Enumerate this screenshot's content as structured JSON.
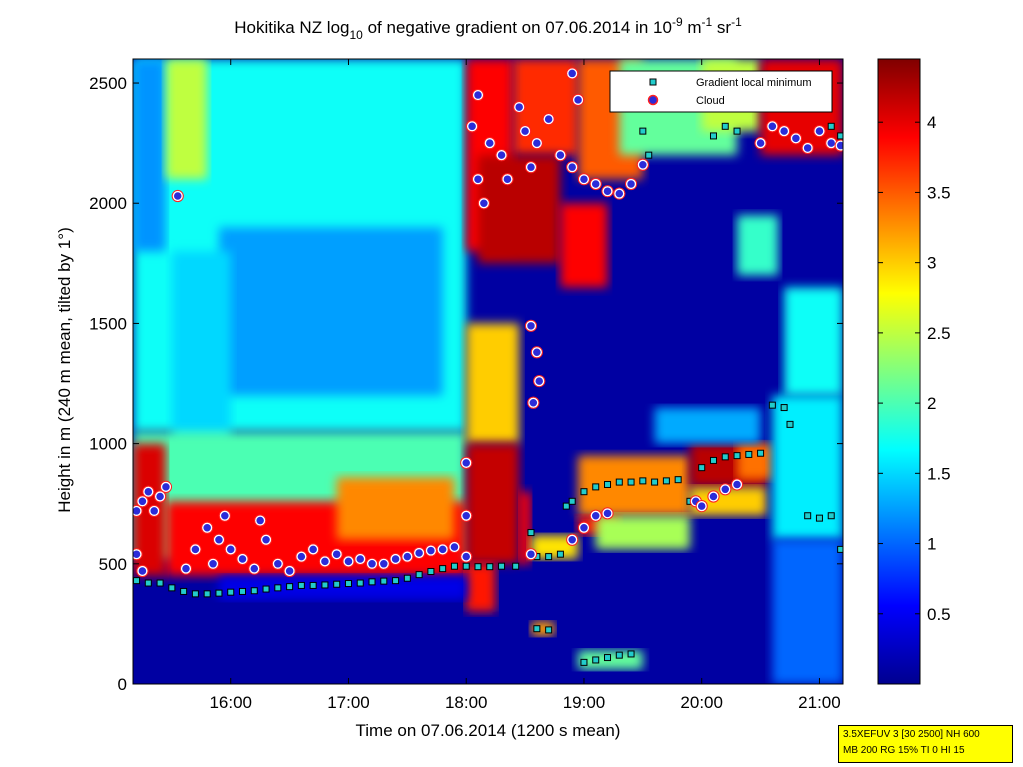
{
  "chart_data": {
    "type": "heatmap",
    "title_parts": {
      "lead": "Hokitika NZ log",
      "sub": "10",
      "mid": " of negative gradient on 07.06.2014 in 10",
      "sup1": "-9",
      "mid2": " m",
      "sup2": "-1",
      "mid3": " sr",
      "sup3": "-1"
    },
    "xlabel": "Time on 07.06.2014 (1200 s mean)",
    "ylabel": "Height in m (240 m mean, tilted by 1°)",
    "xlim": [
      15.17,
      21.2
    ],
    "ylim": [
      0,
      2600
    ],
    "x_ticks": [
      {
        "v": 16,
        "label": "16:00"
      },
      {
        "v": 17,
        "label": "17:00"
      },
      {
        "v": 18,
        "label": "18:00"
      },
      {
        "v": 19,
        "label": "19:00"
      },
      {
        "v": 20,
        "label": "20:00"
      },
      {
        "v": 21,
        "label": "21:00"
      }
    ],
    "y_ticks": [
      {
        "v": 0,
        "label": "0"
      },
      {
        "v": 500,
        "label": "500"
      },
      {
        "v": 1000,
        "label": "1000"
      },
      {
        "v": 1500,
        "label": "1500"
      },
      {
        "v": 2000,
        "label": "2000"
      },
      {
        "v": 2500,
        "label": "2500"
      }
    ],
    "colorbar": {
      "min": 0.0,
      "max": 4.45,
      "ticks": [
        {
          "v": 0.5,
          "label": "0.5"
        },
        {
          "v": 1,
          "label": "1"
        },
        {
          "v": 1.5,
          "label": "1.5"
        },
        {
          "v": 2,
          "label": "2"
        },
        {
          "v": 2.5,
          "label": "2.5"
        },
        {
          "v": 3,
          "label": "3"
        },
        {
          "v": 3.5,
          "label": "3.5"
        },
        {
          "v": 4,
          "label": "4"
        }
      ]
    },
    "legend": {
      "placement": "top-right",
      "entries": [
        {
          "name": "Gradient local minimum",
          "marker": "square",
          "color": "#22cccc"
        },
        {
          "name": "Cloud",
          "marker": "circle",
          "color": "#2b2bd9",
          "edge": "#ff2020"
        }
      ]
    },
    "regions": [
      {
        "x": [
          15.17,
          21.2
        ],
        "y": [
          0,
          2600
        ],
        "v": 0.15
      },
      {
        "x": [
          15.17,
          18.0
        ],
        "y": [
          1050,
          2600
        ],
        "v": 1.7
      },
      {
        "x": [
          15.17,
          15.45
        ],
        "y": [
          1800,
          2600
        ],
        "v": 1.2
      },
      {
        "x": [
          15.9,
          17.8
        ],
        "y": [
          1200,
          1900
        ],
        "v": 1.25
      },
      {
        "x": [
          15.45,
          15.8
        ],
        "y": [
          2100,
          2600
        ],
        "v": 2.5
      },
      {
        "x": [
          15.5,
          16.0
        ],
        "y": [
          1000,
          1800
        ],
        "v": 1.5
      },
      {
        "x": [
          15.17,
          18.0
        ],
        "y": [
          520,
          1050
        ],
        "v": 2.0
      },
      {
        "x": [
          15.17,
          15.45
        ],
        "y": [
          450,
          1000
        ],
        "v": 4.05
      },
      {
        "x": [
          15.45,
          18.0
        ],
        "y": [
          450,
          760
        ],
        "v": 3.9
      },
      {
        "x": [
          16.9,
          17.9
        ],
        "y": [
          600,
          860
        ],
        "v": 3.3
      },
      {
        "x": [
          18.0,
          18.4
        ],
        "y": [
          1800,
          2600
        ],
        "v": 3.9
      },
      {
        "x": [
          18.4,
          18.95
        ],
        "y": [
          2200,
          2600
        ],
        "v": 3.7
      },
      {
        "x": [
          18.95,
          19.5
        ],
        "y": [
          2100,
          2600
        ],
        "v": 3.5
      },
      {
        "x": [
          18.1,
          18.8
        ],
        "y": [
          1750,
          2200
        ],
        "v": 4.2
      },
      {
        "x": [
          18.8,
          19.2
        ],
        "y": [
          1650,
          2000
        ],
        "v": 3.9
      },
      {
        "x": [
          18.0,
          18.45
        ],
        "y": [
          1000,
          1500
        ],
        "v": 3.0
      },
      {
        "x": [
          18.0,
          18.45
        ],
        "y": [
          500,
          1000
        ],
        "v": 4.15
      },
      {
        "x": [
          18.0,
          18.25
        ],
        "y": [
          300,
          500
        ],
        "v": 3.8
      },
      {
        "x": [
          18.45,
          18.55
        ],
        "y": [
          500,
          800
        ],
        "v": 3.9
      },
      {
        "x": [
          18.55,
          18.95
        ],
        "y": [
          520,
          620
        ],
        "v": 2.9
      },
      {
        "x": [
          18.95,
          19.9
        ],
        "y": [
          700,
          950
        ],
        "v": 3.3
      },
      {
        "x": [
          18.95,
          19.3
        ],
        "y": [
          620,
          700
        ],
        "v": 3.8
      },
      {
        "x": [
          19.1,
          19.9
        ],
        "y": [
          560,
          700
        ],
        "v": 2.4
      },
      {
        "x": [
          19.9,
          20.55
        ],
        "y": [
          820,
          1000
        ],
        "v": 4.2
      },
      {
        "x": [
          19.9,
          20.55
        ],
        "y": [
          700,
          820
        ],
        "v": 3.0
      },
      {
        "x": [
          20.3,
          20.6
        ],
        "y": [
          850,
          1000
        ],
        "v": 3.4
      },
      {
        "x": [
          20.6,
          21.2
        ],
        "y": [
          600,
          1200
        ],
        "v": 1.6
      },
      {
        "x": [
          20.7,
          21.2
        ],
        "y": [
          1200,
          1650
        ],
        "v": 1.7
      },
      {
        "x": [
          19.6,
          20.5
        ],
        "y": [
          1000,
          1150
        ],
        "v": 1.3
      },
      {
        "x": [
          20.3,
          20.65
        ],
        "y": [
          1700,
          1950
        ],
        "v": 1.9
      },
      {
        "x": [
          19.3,
          20.3
        ],
        "y": [
          2200,
          2600
        ],
        "v": 2.1
      },
      {
        "x": [
          20.0,
          20.5
        ],
        "y": [
          2300,
          2600
        ],
        "v": 2.5
      },
      {
        "x": [
          20.5,
          21.2
        ],
        "y": [
          2200,
          2600
        ],
        "v": 4.0
      },
      {
        "x": [
          18.55,
          18.75
        ],
        "y": [
          200,
          260
        ],
        "v": 3.2
      },
      {
        "x": [
          18.95,
          19.5
        ],
        "y": [
          60,
          140
        ],
        "v": 2.1
      },
      {
        "x": [
          20.6,
          21.2
        ],
        "y": [
          0,
          600
        ],
        "v": 1.0
      },
      {
        "x": [
          15.9,
          18.0
        ],
        "y": [
          350,
          450
        ],
        "v": 0.45
      }
    ],
    "series": [
      {
        "name": "Gradient local minimum",
        "points": [
          [
            15.2,
            430
          ],
          [
            15.3,
            420
          ],
          [
            15.4,
            420
          ],
          [
            15.5,
            400
          ],
          [
            15.6,
            385
          ],
          [
            15.7,
            375
          ],
          [
            15.8,
            375
          ],
          [
            15.9,
            378
          ],
          [
            16.0,
            382
          ],
          [
            16.1,
            385
          ],
          [
            16.2,
            388
          ],
          [
            16.3,
            395
          ],
          [
            16.4,
            400
          ],
          [
            16.5,
            405
          ],
          [
            16.6,
            410
          ],
          [
            16.7,
            410
          ],
          [
            16.8,
            412
          ],
          [
            16.9,
            415
          ],
          [
            17.0,
            418
          ],
          [
            17.1,
            420
          ],
          [
            17.2,
            425
          ],
          [
            17.3,
            428
          ],
          [
            17.4,
            430
          ],
          [
            17.5,
            440
          ],
          [
            17.6,
            455
          ],
          [
            17.7,
            468
          ],
          [
            17.8,
            480
          ],
          [
            17.9,
            490
          ],
          [
            18.0,
            490
          ],
          [
            18.1,
            488
          ],
          [
            18.2,
            488
          ],
          [
            18.3,
            490
          ],
          [
            18.42,
            490
          ],
          [
            18.55,
            630
          ],
          [
            18.6,
            530
          ],
          [
            18.7,
            530
          ],
          [
            18.8,
            540
          ],
          [
            18.85,
            740
          ],
          [
            18.9,
            760
          ],
          [
            19.0,
            800
          ],
          [
            19.1,
            820
          ],
          [
            19.2,
            830
          ],
          [
            19.3,
            840
          ],
          [
            19.4,
            840
          ],
          [
            19.5,
            845
          ],
          [
            19.6,
            840
          ],
          [
            19.7,
            845
          ],
          [
            19.8,
            850
          ],
          [
            19.9,
            760
          ],
          [
            20.0,
            900
          ],
          [
            20.1,
            930
          ],
          [
            20.2,
            945
          ],
          [
            20.3,
            950
          ],
          [
            20.4,
            955
          ],
          [
            20.5,
            960
          ],
          [
            20.6,
            1160
          ],
          [
            20.7,
            1150
          ],
          [
            20.75,
            1080
          ],
          [
            20.9,
            700
          ],
          [
            21.0,
            690
          ],
          [
            21.1,
            700
          ],
          [
            21.18,
            560
          ],
          [
            18.6,
            230
          ],
          [
            18.7,
            225
          ],
          [
            19.0,
            90
          ],
          [
            19.1,
            100
          ],
          [
            19.2,
            110
          ],
          [
            19.3,
            120
          ],
          [
            19.4,
            125
          ],
          [
            19.5,
            2300
          ],
          [
            19.55,
            2200
          ],
          [
            20.1,
            2280
          ],
          [
            20.2,
            2320
          ],
          [
            20.3,
            2300
          ],
          [
            21.1,
            2320
          ],
          [
            21.18,
            2280
          ]
        ]
      },
      {
        "name": "Cloud",
        "points": [
          [
            15.2,
            720
          ],
          [
            15.25,
            760
          ],
          [
            15.3,
            800
          ],
          [
            15.35,
            720
          ],
          [
            15.4,
            780
          ],
          [
            15.45,
            820
          ],
          [
            15.2,
            540
          ],
          [
            15.25,
            470
          ],
          [
            15.55,
            2030
          ],
          [
            15.62,
            480
          ],
          [
            15.7,
            560
          ],
          [
            15.8,
            650
          ],
          [
            15.85,
            500
          ],
          [
            15.9,
            600
          ],
          [
            15.95,
            700
          ],
          [
            16.0,
            560
          ],
          [
            16.1,
            520
          ],
          [
            16.2,
            480
          ],
          [
            16.25,
            680
          ],
          [
            16.3,
            600
          ],
          [
            16.4,
            500
          ],
          [
            16.5,
            470
          ],
          [
            16.6,
            530
          ],
          [
            16.7,
            560
          ],
          [
            16.8,
            510
          ],
          [
            16.9,
            540
          ],
          [
            17.0,
            510
          ],
          [
            17.1,
            520
          ],
          [
            17.2,
            500
          ],
          [
            17.3,
            500
          ],
          [
            17.4,
            520
          ],
          [
            17.5,
            530
          ],
          [
            17.6,
            545
          ],
          [
            17.7,
            555
          ],
          [
            17.8,
            560
          ],
          [
            17.9,
            570
          ],
          [
            18.0,
            530
          ],
          [
            18.0,
            920
          ],
          [
            18.0,
            700
          ],
          [
            18.05,
            2320
          ],
          [
            18.1,
            2450
          ],
          [
            18.1,
            2100
          ],
          [
            18.15,
            2000
          ],
          [
            18.2,
            2250
          ],
          [
            18.3,
            2200
          ],
          [
            18.35,
            2100
          ],
          [
            18.45,
            2400
          ],
          [
            18.5,
            2300
          ],
          [
            18.55,
            2150
          ],
          [
            18.6,
            2250
          ],
          [
            18.7,
            2350
          ],
          [
            18.8,
            2200
          ],
          [
            18.9,
            2150
          ],
          [
            18.9,
            2540
          ],
          [
            18.95,
            2430
          ],
          [
            18.55,
            1490
          ],
          [
            18.6,
            1380
          ],
          [
            18.62,
            1260
          ],
          [
            18.57,
            1170
          ],
          [
            18.55,
            540
          ],
          [
            19.0,
            2100
          ],
          [
            19.1,
            2080
          ],
          [
            19.2,
            2050
          ],
          [
            19.3,
            2040
          ],
          [
            19.4,
            2080
          ],
          [
            19.5,
            2160
          ],
          [
            18.9,
            600
          ],
          [
            19.0,
            650
          ],
          [
            19.1,
            700
          ],
          [
            19.2,
            710
          ],
          [
            19.95,
            760
          ],
          [
            20.0,
            740
          ],
          [
            20.1,
            780
          ],
          [
            20.2,
            810
          ],
          [
            20.3,
            830
          ],
          [
            20.5,
            2250
          ],
          [
            20.6,
            2320
          ],
          [
            20.7,
            2300
          ],
          [
            20.8,
            2270
          ],
          [
            20.9,
            2230
          ],
          [
            21.0,
            2300
          ],
          [
            21.1,
            2250
          ],
          [
            21.18,
            2240
          ]
        ]
      }
    ]
  },
  "info_box": {
    "line1": "3.5XEFUV 3 [30 2500] NH 600",
    "line2": "MB 200 RG 15% TI 0 HI 15"
  }
}
